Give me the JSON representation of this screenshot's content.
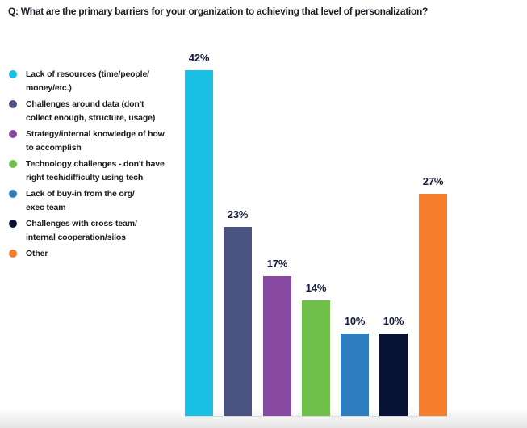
{
  "title": "Q: What are the primary barriers for your organization to achieving that level of personalization?",
  "chart_data": {
    "type": "bar",
    "title": "Q: What are the primary barriers for your organization to achieving that level of personalization?",
    "categories": [
      "Lack of resources (time/people/money/etc.)",
      "Challenges around data (don't collect enough, structure, usage)",
      "Strategy/internal knowledge of how to accomplish",
      "Technology challenges - don't have right tech/difficulty using tech",
      "Lack of buy-in from the org/exec team",
      "Challenges with cross-team/internal cooperation/silos",
      "Other"
    ],
    "values": [
      42,
      23,
      17,
      14,
      10,
      10,
      27
    ],
    "value_labels": [
      "42%",
      "23%",
      "17%",
      "14%",
      "10%",
      "10%",
      "27%"
    ],
    "bar_colors": [
      "#1ac0e4",
      "#4b5380",
      "#8849a3",
      "#6fc04a",
      "#2e7dc1",
      "#071234",
      "#f57d2c"
    ],
    "unit": "%",
    "ylim": [
      0,
      45
    ],
    "grid": false,
    "axes_visible": false,
    "legend_position": "left",
    "value_label_color": "#141a3c"
  },
  "legend": {
    "items": [
      {
        "lines": [
          "Lack of resources (time/people/",
          "money/etc.)"
        ],
        "color": "#1ac0e4"
      },
      {
        "lines": [
          "Challenges around data (don't",
          "collect enough, structure, usage)"
        ],
        "color": "#4b5380"
      },
      {
        "lines": [
          "Strategy/internal knowledge of how",
          "to accomplish"
        ],
        "color": "#8849a3"
      },
      {
        "lines": [
          "Technology challenges - don't have",
          "right tech/difficulty using tech"
        ],
        "color": "#6fc04a"
      },
      {
        "lines": [
          "Lack of buy-in from the org/",
          "exec team"
        ],
        "color": "#2e7dc1"
      },
      {
        "lines": [
          "Challenges with cross-team/",
          "internal cooperation/silos"
        ],
        "color": "#071234"
      },
      {
        "lines": [
          "Other"
        ],
        "color": "#f57d2c"
      }
    ]
  }
}
